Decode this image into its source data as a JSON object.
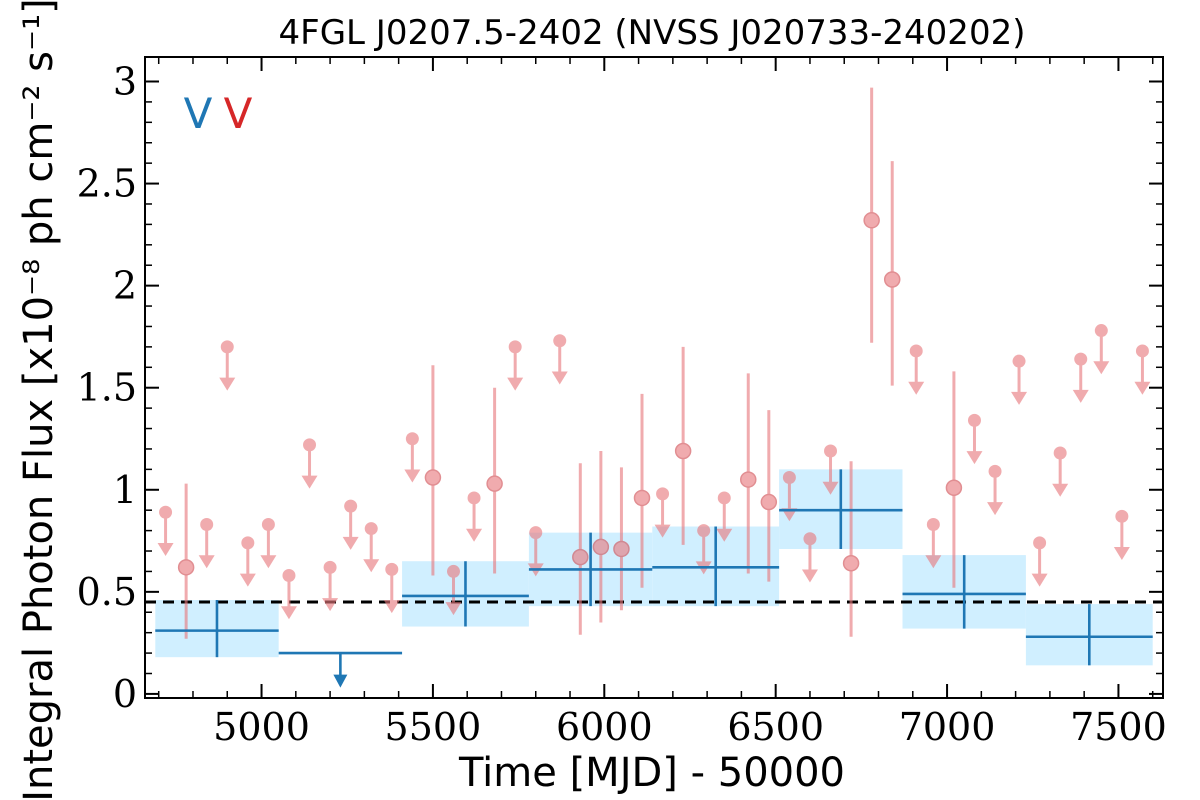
{
  "chart_data": {
    "type": "scatter",
    "title": "4FGL J0207.5-2402 (NVSS J020733-240202)",
    "xlabel": "Time [MJD] - 50000",
    "ylabel": "Integral Photon Flux [x10⁻⁸ ph cm⁻² s⁻¹]",
    "xlim": [
      4660,
      7630
    ],
    "ylim": [
      -0.02,
      3.12
    ],
    "xticks": [
      5000,
      5500,
      6000,
      6500,
      7000,
      7500
    ],
    "xtick_labels": [
      "5000",
      "5500",
      "6000",
      "6500",
      "7000",
      "7500"
    ],
    "yticks": [
      0,
      0.5,
      1,
      1.5,
      2,
      2.5,
      3
    ],
    "ytick_labels": [
      "0",
      "0.5",
      "1",
      "1.5",
      "2",
      "2.5",
      "3"
    ],
    "variability_flags": [
      {
        "text": "V",
        "color": "#1f77b4"
      },
      {
        "text": "V",
        "color": "#d62728"
      }
    ],
    "reference_level": 0.45,
    "colors": {
      "long_bins": "#1f77b4",
      "long_band": "#d0efff",
      "short_bins": "#e8797d",
      "reference": "#000000"
    },
    "long_bins": [
      {
        "x0": 4690,
        "x1": 5050,
        "y": 0.31,
        "ylo": 0.18,
        "yhi": 0.46
      },
      {
        "x0": 5050,
        "x1": 5410,
        "y": 0.2,
        "upper_limit": true
      },
      {
        "x0": 5410,
        "x1": 5780,
        "y": 0.48,
        "ylo": 0.33,
        "yhi": 0.65
      },
      {
        "x0": 5780,
        "x1": 6140,
        "y": 0.61,
        "ylo": 0.43,
        "yhi": 0.79
      },
      {
        "x0": 6140,
        "x1": 6510,
        "y": 0.62,
        "ylo": 0.43,
        "yhi": 0.82
      },
      {
        "x0": 6510,
        "x1": 6870,
        "y": 0.9,
        "ylo": 0.71,
        "yhi": 1.1
      },
      {
        "x0": 6870,
        "x1": 7230,
        "y": 0.49,
        "ylo": 0.32,
        "yhi": 0.68
      },
      {
        "x0": 7230,
        "x1": 7600,
        "y": 0.28,
        "ylo": 0.14,
        "yhi": 0.44
      }
    ],
    "short_bins": [
      {
        "x": 4720,
        "y": 0.89,
        "upper_limit": true
      },
      {
        "x": 4780,
        "y": 0.62,
        "ylo": 0.27,
        "yhi": 1.03
      },
      {
        "x": 4840,
        "y": 0.83,
        "upper_limit": true
      },
      {
        "x": 4900,
        "y": 1.7,
        "upper_limit": true
      },
      {
        "x": 4960,
        "y": 0.74,
        "upper_limit": true
      },
      {
        "x": 5020,
        "y": 0.83,
        "upper_limit": true
      },
      {
        "x": 5080,
        "y": 0.58,
        "upper_limit": true
      },
      {
        "x": 5140,
        "y": 1.22,
        "upper_limit": true
      },
      {
        "x": 5200,
        "y": 0.62,
        "upper_limit": true
      },
      {
        "x": 5260,
        "y": 0.92,
        "upper_limit": true
      },
      {
        "x": 5320,
        "y": 0.81,
        "upper_limit": true
      },
      {
        "x": 5380,
        "y": 0.61,
        "upper_limit": true
      },
      {
        "x": 5440,
        "y": 1.25,
        "upper_limit": true
      },
      {
        "x": 5500,
        "y": 1.06,
        "ylo": 0.58,
        "yhi": 1.61
      },
      {
        "x": 5560,
        "y": 0.6,
        "upper_limit": true
      },
      {
        "x": 5620,
        "y": 0.96,
        "upper_limit": true
      },
      {
        "x": 5680,
        "y": 1.03,
        "ylo": 0.59,
        "yhi": 1.5
      },
      {
        "x": 5740,
        "y": 1.7,
        "upper_limit": true
      },
      {
        "x": 5800,
        "y": 0.79,
        "upper_limit": true
      },
      {
        "x": 5870,
        "y": 1.73,
        "upper_limit": true
      },
      {
        "x": 5930,
        "y": 0.67,
        "ylo": 0.29,
        "yhi": 1.13
      },
      {
        "x": 5990,
        "y": 0.72,
        "ylo": 0.35,
        "yhi": 1.19
      },
      {
        "x": 6050,
        "y": 0.71,
        "ylo": 0.41,
        "yhi": 1.11
      },
      {
        "x": 6110,
        "y": 0.96,
        "ylo": 0.52,
        "yhi": 1.47
      },
      {
        "x": 6170,
        "y": 0.98,
        "upper_limit": true
      },
      {
        "x": 6230,
        "y": 1.19,
        "ylo": 0.73,
        "yhi": 1.7
      },
      {
        "x": 6290,
        "y": 0.8,
        "upper_limit": true
      },
      {
        "x": 6350,
        "y": 0.96,
        "upper_limit": true
      },
      {
        "x": 6420,
        "y": 1.05,
        "ylo": 0.59,
        "yhi": 1.57
      },
      {
        "x": 6480,
        "y": 0.94,
        "ylo": 0.55,
        "yhi": 1.39
      },
      {
        "x": 6540,
        "y": 1.06,
        "upper_limit": true
      },
      {
        "x": 6600,
        "y": 0.76,
        "upper_limit": true
      },
      {
        "x": 6660,
        "y": 1.19,
        "upper_limit": true
      },
      {
        "x": 6720,
        "y": 0.64,
        "ylo": 0.28,
        "yhi": 1.14
      },
      {
        "x": 6780,
        "y": 2.32,
        "ylo": 1.72,
        "yhi": 2.97
      },
      {
        "x": 6840,
        "y": 2.03,
        "ylo": 1.51,
        "yhi": 2.61
      },
      {
        "x": 6910,
        "y": 1.68,
        "upper_limit": true
      },
      {
        "x": 6960,
        "y": 0.83,
        "upper_limit": true
      },
      {
        "x": 7020,
        "y": 1.01,
        "ylo": 0.52,
        "yhi": 1.58
      },
      {
        "x": 7080,
        "y": 1.34,
        "upper_limit": true
      },
      {
        "x": 7140,
        "y": 1.09,
        "upper_limit": true
      },
      {
        "x": 7210,
        "y": 1.63,
        "upper_limit": true
      },
      {
        "x": 7270,
        "y": 0.74,
        "upper_limit": true
      },
      {
        "x": 7330,
        "y": 1.18,
        "upper_limit": true
      },
      {
        "x": 7390,
        "y": 1.64,
        "upper_limit": true
      },
      {
        "x": 7450,
        "y": 1.78,
        "upper_limit": true
      },
      {
        "x": 7510,
        "y": 0.87,
        "upper_limit": true
      },
      {
        "x": 7570,
        "y": 1.68,
        "upper_limit": true
      }
    ]
  }
}
